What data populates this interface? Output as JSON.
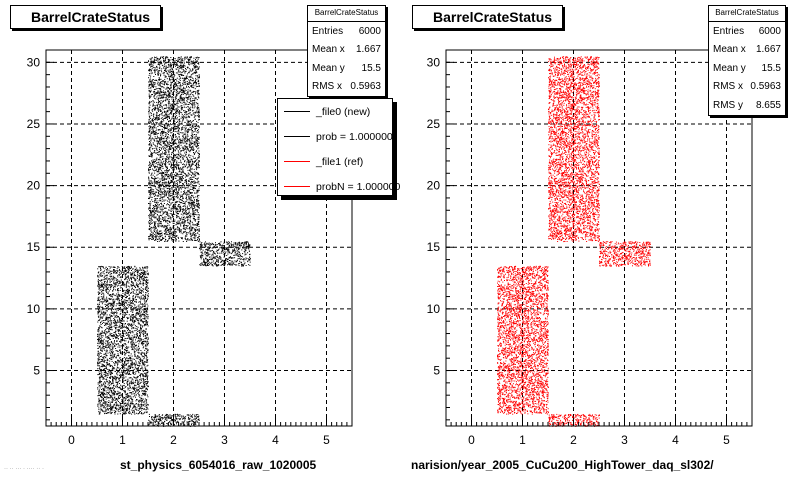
{
  "chart_data": [
    {
      "type": "scatter",
      "title": "BarrelCrateStatus",
      "xlabel": "st_physics_6054016_raw_1020005",
      "ylabel": "",
      "xlim": [
        -0.5,
        5.5
      ],
      "ylim": [
        0.5,
        31
      ],
      "x_ticks": [
        "0",
        "1",
        "2",
        "3",
        "4",
        "5"
      ],
      "y_ticks": [
        "5",
        "10",
        "15",
        "20",
        "25",
        "30"
      ],
      "grid": true,
      "marker_color": "#000000",
      "series": [
        {
          "name": "_file0 (new)",
          "regions": [
            {
              "x": [
                0.5,
                1.5
              ],
              "y": [
                1.5,
                13.5
              ]
            },
            {
              "x": [
                1.5,
                2.5
              ],
              "y": [
                0.5,
                1.5
              ]
            },
            {
              "x": [
                1.5,
                2.5
              ],
              "y": [
                15.5,
                30.5
              ]
            },
            {
              "x": [
                2.5,
                3.5
              ],
              "y": [
                13.5,
                15.5
              ]
            }
          ]
        }
      ],
      "stats": {
        "title": "BarrelCrateStatus",
        "rows": [
          {
            "label": "Entries",
            "value": "6000"
          },
          {
            "label": "Mean x",
            "value": "1.667"
          },
          {
            "label": "Mean y",
            "value": "15.5"
          },
          {
            "label": "RMS x",
            "value": "0.5963"
          }
        ]
      },
      "legend": {
        "placement": "top-right",
        "entries": [
          {
            "label": "_file0 (new)",
            "color": "#000000"
          },
          {
            "label": "prob = 1.000000",
            "color": "#000000"
          },
          {
            "label": "_file1 (ref)",
            "color": "#ff0000"
          },
          {
            "label": "probN = 1.000000",
            "color": "#ff0000"
          }
        ]
      }
    },
    {
      "type": "scatter",
      "title": "BarrelCrateStatus",
      "xlabel": "narision/year_2005_CuCu200_HighTower_daq_sl302/",
      "ylabel": "",
      "xlim": [
        -0.5,
        5.5
      ],
      "ylim": [
        0.5,
        31
      ],
      "x_ticks": [
        "0",
        "1",
        "2",
        "3",
        "4",
        "5"
      ],
      "y_ticks": [
        "5",
        "10",
        "15",
        "20",
        "25",
        "30"
      ],
      "grid": true,
      "marker_color": "#ff0000",
      "series": [
        {
          "name": "_file1 (ref)",
          "regions": [
            {
              "x": [
                0.5,
                1.5
              ],
              "y": [
                1.5,
                13.5
              ]
            },
            {
              "x": [
                1.5,
                2.5
              ],
              "y": [
                0.5,
                1.5
              ]
            },
            {
              "x": [
                1.5,
                2.5
              ],
              "y": [
                15.5,
                30.5
              ]
            },
            {
              "x": [
                2.5,
                3.5
              ],
              "y": [
                13.5,
                15.5
              ]
            }
          ]
        }
      ],
      "stats": {
        "title": "BarrelCrateStatus",
        "rows": [
          {
            "label": "Entries",
            "value": "6000"
          },
          {
            "label": "Mean x",
            "value": "1.667"
          },
          {
            "label": "Mean y",
            "value": "15.5"
          },
          {
            "label": "RMS x",
            "value": "0.5963"
          },
          {
            "label": "RMS y",
            "value": "8.655"
          }
        ]
      }
    }
  ],
  "footer": "·· ·· ··· · ···· ·· ·"
}
